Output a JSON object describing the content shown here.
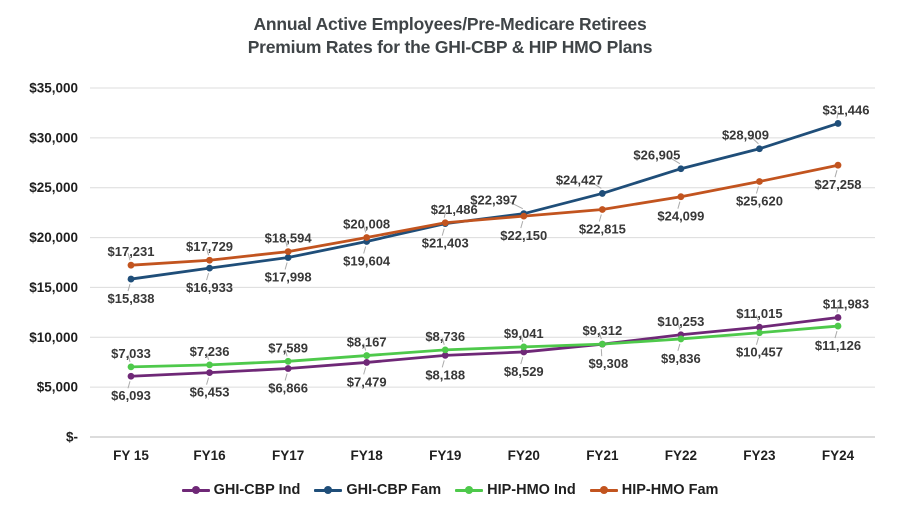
{
  "title": {
    "line1": "Annual Active Employees/Pre-Medicare Retirees",
    "line2": "Premium Rates for the GHI-CBP & HIP HMO Plans"
  },
  "chart_data": {
    "type": "line",
    "categories": [
      "FY 15",
      "FY16",
      "FY17",
      "FY18",
      "FY19",
      "FY20",
      "FY21",
      "FY22",
      "FY23",
      "FY24"
    ],
    "y_axis": {
      "min": 0,
      "max": 35000,
      "step": 5000,
      "tick_labels": [
        "$-",
        "$5,000",
        "$10,000",
        "$15,000",
        "$20,000",
        "$25,000",
        "$30,000",
        "$35,000"
      ]
    },
    "grid": true,
    "legend_position": "bottom",
    "series": [
      {
        "name": "GHI-CBP Ind",
        "color": "#6f2877",
        "values": [
          6093,
          6453,
          6866,
          7479,
          8188,
          8529,
          9308,
          10253,
          11015,
          11983
        ],
        "label_sides": [
          "below",
          "below",
          "below",
          "below",
          "below",
          "below",
          "below",
          "above",
          "above",
          "above"
        ],
        "label_dx": [
          0,
          0,
          0,
          0,
          0,
          0,
          6,
          0,
          0,
          8
        ]
      },
      {
        "name": "GHI-CBP Fam",
        "color": "#1f4e79",
        "values": [
          15838,
          16933,
          17998,
          19604,
          21403,
          22397,
          24427,
          26905,
          28909,
          31446
        ],
        "label_sides": [
          "below",
          "below",
          "below",
          "below",
          "below",
          "above",
          "above",
          "above",
          "above",
          "above"
        ],
        "label_dx": [
          0,
          0,
          0,
          0,
          0,
          -30,
          -23,
          -24,
          -14,
          8
        ]
      },
      {
        "name": "HIP-HMO Ind",
        "color": "#4ec94b",
        "values": [
          7033,
          7236,
          7589,
          8167,
          8736,
          9041,
          9312,
          9836,
          10457,
          11126
        ],
        "label_sides": [
          "above",
          "above",
          "above",
          "above",
          "above",
          "above",
          "above",
          "below",
          "below",
          "below"
        ],
        "label_dx": [
          0,
          0,
          0,
          0,
          0,
          0,
          0,
          0,
          0,
          0
        ]
      },
      {
        "name": "HIP-HMO Fam",
        "color": "#c2541f",
        "values": [
          17231,
          17729,
          18594,
          20008,
          21486,
          22150,
          22815,
          24099,
          25620,
          27258
        ],
        "label_sides": [
          "above",
          "above",
          "above",
          "above",
          "above",
          "below",
          "below",
          "below",
          "below",
          "below"
        ],
        "label_dx": [
          0,
          0,
          0,
          0,
          9,
          0,
          0,
          0,
          0,
          0
        ]
      }
    ]
  }
}
